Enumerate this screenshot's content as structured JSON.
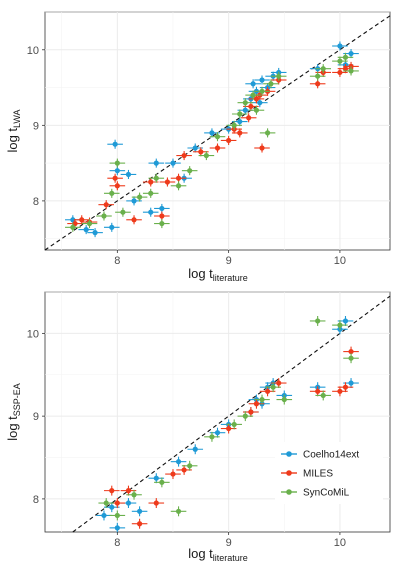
{
  "chart_data": [
    {
      "type": "scatter",
      "xlabel": {
        "main": "log t",
        "sub": "literature"
      },
      "ylabel": {
        "main": "log t",
        "sub": "LWA"
      },
      "xlim": [
        7.35,
        10.45
      ],
      "ylim": [
        7.35,
        10.5
      ],
      "xticks": [
        8,
        9,
        10
      ],
      "yticks": [
        8,
        9,
        10
      ],
      "grid": true,
      "reference_line": {
        "style": "dashed",
        "slope": 1,
        "intercept": 0
      },
      "series": [
        {
          "name": "Coelho14ext",
          "color": "#1f9ad6",
          "points": [
            [
              7.6,
              7.75
            ],
            [
              7.72,
              7.62
            ],
            [
              7.8,
              7.58
            ],
            [
              7.95,
              7.65
            ],
            [
              7.98,
              8.75
            ],
            [
              8.0,
              8.4
            ],
            [
              8.1,
              8.35
            ],
            [
              8.15,
              8.0
            ],
            [
              8.3,
              7.85
            ],
            [
              8.35,
              8.5
            ],
            [
              8.4,
              7.9
            ],
            [
              8.5,
              8.5
            ],
            [
              8.6,
              8.3
            ],
            [
              8.7,
              8.7
            ],
            [
              8.85,
              8.9
            ],
            [
              9.0,
              8.95
            ],
            [
              9.1,
              9.05
            ],
            [
              9.15,
              9.2
            ],
            [
              9.2,
              9.35
            ],
            [
              9.22,
              9.55
            ],
            [
              9.25,
              9.45
            ],
            [
              9.28,
              9.3
            ],
            [
              9.3,
              9.6
            ],
            [
              9.35,
              9.5
            ],
            [
              9.4,
              9.65
            ],
            [
              9.45,
              9.7
            ],
            [
              9.8,
              9.75
            ],
            [
              10.0,
              10.05
            ],
            [
              10.05,
              9.8
            ],
            [
              10.1,
              9.95
            ]
          ]
        },
        {
          "name": "MILES",
          "color": "#ee3a1b",
          "points": [
            [
              7.62,
              7.7
            ],
            [
              7.68,
              7.75
            ],
            [
              7.75,
              7.72
            ],
            [
              7.9,
              7.95
            ],
            [
              7.98,
              8.3
            ],
            [
              8.0,
              8.2
            ],
            [
              8.15,
              7.75
            ],
            [
              8.3,
              8.25
            ],
            [
              8.4,
              7.8
            ],
            [
              8.45,
              8.25
            ],
            [
              8.55,
              8.3
            ],
            [
              8.6,
              8.6
            ],
            [
              8.75,
              8.65
            ],
            [
              8.9,
              8.7
            ],
            [
              9.0,
              8.8
            ],
            [
              9.05,
              8.95
            ],
            [
              9.1,
              8.9
            ],
            [
              9.18,
              9.1
            ],
            [
              9.2,
              9.25
            ],
            [
              9.25,
              9.35
            ],
            [
              9.28,
              9.4
            ],
            [
              9.3,
              8.7
            ],
            [
              9.35,
              9.45
            ],
            [
              9.45,
              9.6
            ],
            [
              9.8,
              9.55
            ],
            [
              9.85,
              9.7
            ],
            [
              10.0,
              9.7
            ],
            [
              10.05,
              9.75
            ],
            [
              10.1,
              9.78
            ]
          ]
        },
        {
          "name": "SynCoMiL",
          "color": "#6ab04c",
          "points": [
            [
              7.6,
              7.65
            ],
            [
              7.75,
              7.7
            ],
            [
              7.88,
              7.8
            ],
            [
              7.95,
              8.1
            ],
            [
              8.0,
              8.5
            ],
            [
              8.05,
              7.85
            ],
            [
              8.2,
              8.05
            ],
            [
              8.3,
              8.1
            ],
            [
              8.35,
              8.3
            ],
            [
              8.4,
              7.7
            ],
            [
              8.55,
              8.2
            ],
            [
              8.65,
              8.4
            ],
            [
              8.8,
              8.6
            ],
            [
              8.9,
              8.85
            ],
            [
              9.05,
              9.0
            ],
            [
              9.1,
              9.15
            ],
            [
              9.15,
              9.3
            ],
            [
              9.22,
              9.4
            ],
            [
              9.25,
              9.2
            ],
            [
              9.3,
              9.45
            ],
            [
              9.35,
              8.9
            ],
            [
              9.38,
              9.55
            ],
            [
              9.45,
              9.65
            ],
            [
              9.8,
              9.65
            ],
            [
              9.85,
              9.75
            ],
            [
              10.0,
              9.85
            ],
            [
              10.05,
              9.9
            ],
            [
              10.1,
              9.72
            ]
          ]
        }
      ]
    },
    {
      "type": "scatter",
      "xlabel": {
        "main": "log t",
        "sub": "literature"
      },
      "ylabel": {
        "main": "log t",
        "sub": "SSP-EA"
      },
      "xlim": [
        7.35,
        10.45
      ],
      "ylim": [
        7.6,
        10.5
      ],
      "xticks": [
        8,
        9,
        10
      ],
      "yticks": [
        8,
        9,
        10
      ],
      "grid": true,
      "legend_position": "bottom-right",
      "reference_line": {
        "style": "dashed",
        "slope": 1,
        "intercept": 0
      },
      "series": [
        {
          "name": "Coelho14ext",
          "color": "#1f9ad6",
          "points": [
            [
              7.88,
              7.8
            ],
            [
              7.95,
              7.9
            ],
            [
              8.0,
              7.65
            ],
            [
              8.1,
              7.95
            ],
            [
              8.2,
              7.85
            ],
            [
              8.35,
              8.25
            ],
            [
              8.55,
              8.45
            ],
            [
              8.7,
              8.6
            ],
            [
              8.9,
              8.8
            ],
            [
              9.0,
              8.9
            ],
            [
              9.2,
              9.05
            ],
            [
              9.25,
              9.2
            ],
            [
              9.3,
              9.15
            ],
            [
              9.35,
              9.35
            ],
            [
              9.4,
              9.4
            ],
            [
              9.5,
              9.25
            ],
            [
              9.8,
              9.35
            ],
            [
              10.0,
              10.05
            ],
            [
              10.05,
              10.15
            ],
            [
              10.1,
              9.4
            ]
          ]
        },
        {
          "name": "MILES",
          "color": "#ee3a1b",
          "points": [
            [
              7.95,
              8.1
            ],
            [
              8.0,
              7.95
            ],
            [
              8.1,
              8.1
            ],
            [
              8.2,
              7.7
            ],
            [
              8.35,
              7.95
            ],
            [
              8.5,
              8.3
            ],
            [
              8.6,
              8.35
            ],
            [
              9.0,
              8.85
            ],
            [
              9.2,
              9.05
            ],
            [
              9.25,
              9.15
            ],
            [
              9.35,
              9.3
            ],
            [
              9.45,
              9.4
            ],
            [
              9.8,
              9.3
            ],
            [
              10.0,
              9.3
            ],
            [
              10.05,
              9.35
            ],
            [
              10.1,
              9.78
            ]
          ]
        },
        {
          "name": "SynCoMiL",
          "color": "#6ab04c",
          "points": [
            [
              7.9,
              7.95
            ],
            [
              8.0,
              7.8
            ],
            [
              8.15,
              8.05
            ],
            [
              8.4,
              8.2
            ],
            [
              8.55,
              7.85
            ],
            [
              8.65,
              8.4
            ],
            [
              8.85,
              8.75
            ],
            [
              9.05,
              8.9
            ],
            [
              9.15,
              9.0
            ],
            [
              9.3,
              9.2
            ],
            [
              9.4,
              9.35
            ],
            [
              9.5,
              9.2
            ],
            [
              9.8,
              10.15
            ],
            [
              9.85,
              9.25
            ],
            [
              10.0,
              10.1
            ],
            [
              10.1,
              9.7
            ]
          ]
        }
      ]
    }
  ]
}
